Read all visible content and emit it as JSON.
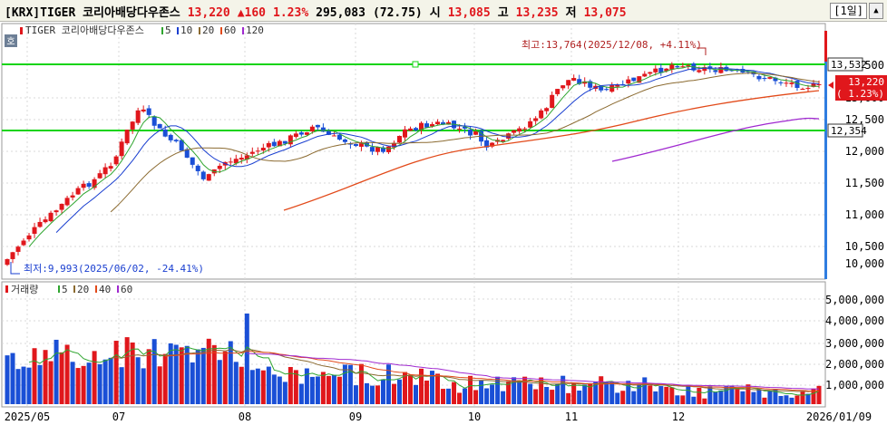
{
  "header": {
    "instrument": "[KRX]TIGER 코리아배당다우존스",
    "price": "13,220",
    "change": "▲160",
    "change_pct": "1.23%",
    "volume": "295,083",
    "volume_ratio": "(72.75)",
    "open_label": "시",
    "open_value": "13,085",
    "high_label": "고",
    "high_value": "13,235",
    "low_label": "저",
    "low_value": "13,075",
    "period_button": "[1일]"
  },
  "price_panel": {
    "title": "TIGER 코리아배당다우존스",
    "ma_legend": [
      "5",
      "10",
      "20",
      "60",
      "120"
    ],
    "side_icon": "호",
    "high_annotation": "최고:13,764(2025/12/08, +4.11%)",
    "low_annotation": "최저:9,993(2025/06/02, -24.41%)",
    "hline_upper_label": "13,532",
    "hline_lower_label": "12,354",
    "current_price_label": "13,220",
    "current_change_label": "( 1.23%)",
    "y_ticks": [
      "500",
      "13,000",
      "12,500",
      "12,000",
      "11,500",
      "11,000",
      "10,500",
      "10,000"
    ]
  },
  "volume_panel": {
    "title": "거래량",
    "ma_legend": [
      "5",
      "20",
      "40",
      "60"
    ],
    "y_ticks": [
      "5,000,000",
      "4,000,000",
      "3,000,000",
      "2,000,000",
      "1,000,000"
    ]
  },
  "x_axis": {
    "labels": [
      "2025/05",
      "07",
      "08",
      "09",
      "10",
      "11",
      "12",
      "2026/01/09"
    ]
  },
  "colors": {
    "up": "#e0171c",
    "down": "#1a4fd6",
    "hline": "#14d414",
    "ma5": "#2fa52f",
    "ma10": "#1a3fd0",
    "ma20": "#8b6a30",
    "ma60": "#e24a1a",
    "ma120": "#a02ad0",
    "right_bar": "#2f7de0"
  }
}
